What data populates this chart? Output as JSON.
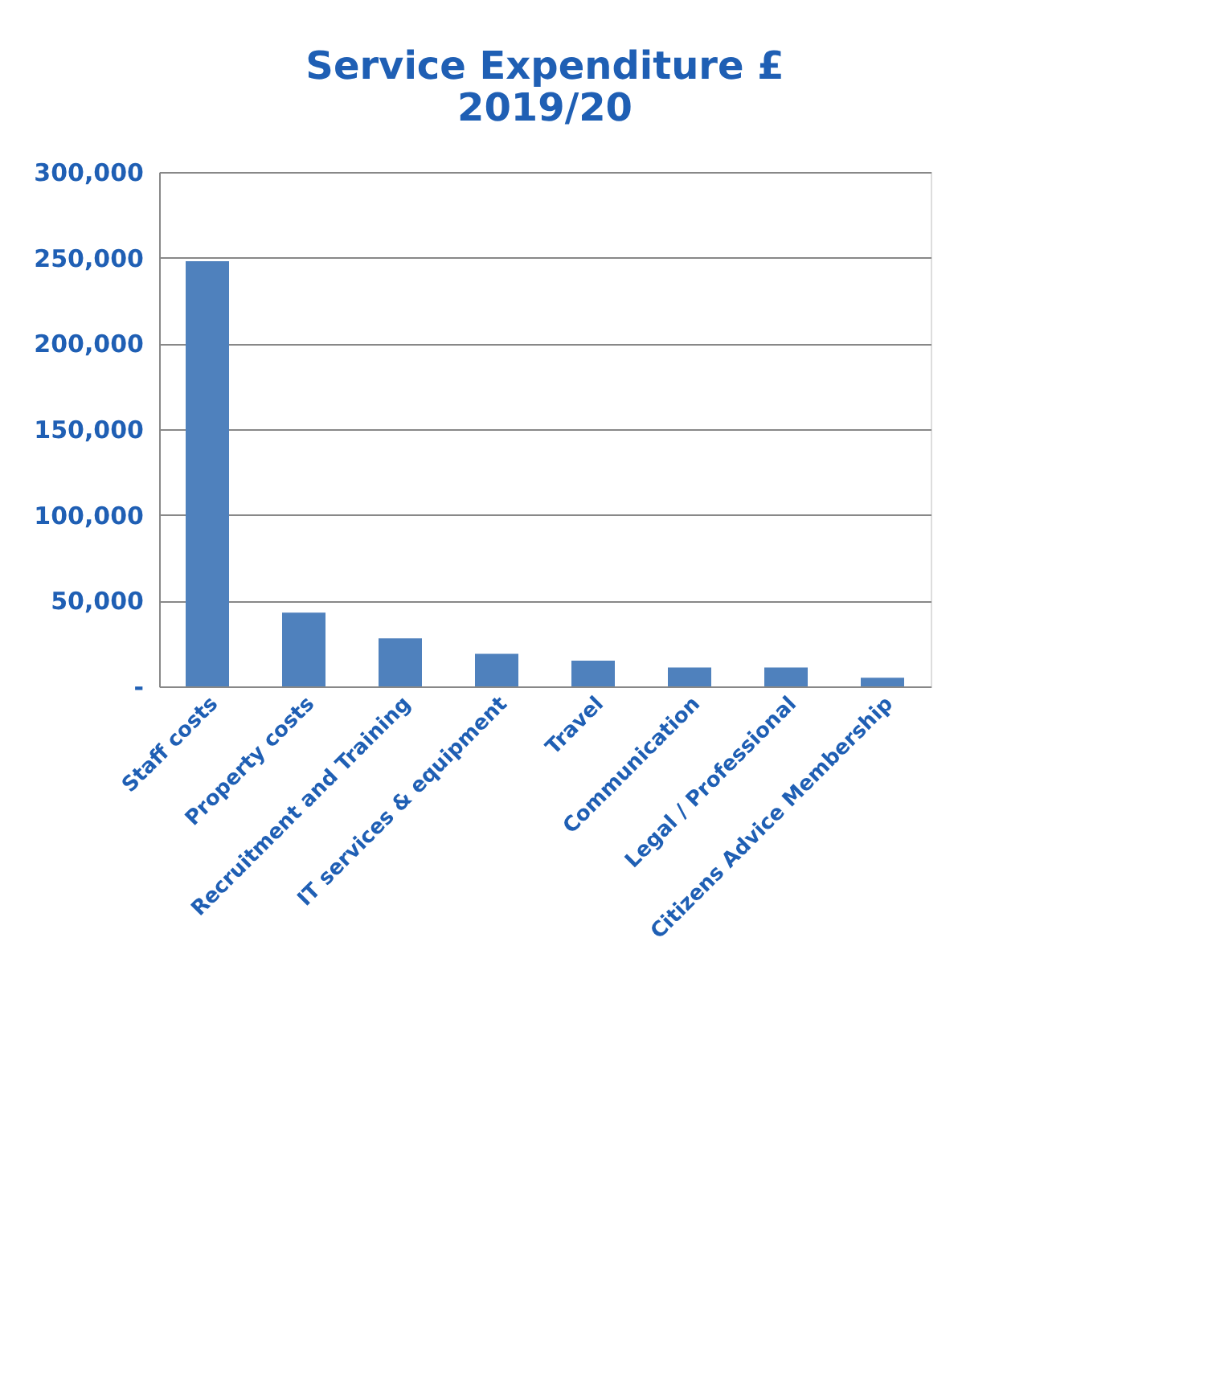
{
  "chart_data": {
    "type": "bar",
    "title": "Service Expenditure £ 2019/20",
    "categories": [
      "Staff costs",
      "Property costs",
      "Recruitment and Training",
      "IT services & equipment",
      "Travel",
      "Communication",
      "Legal / Professional",
      "Citizens Advice Membership"
    ],
    "values": [
      248000,
      43000,
      28000,
      19000,
      15000,
      11000,
      11000,
      5000
    ],
    "color": "#4f81bd",
    "ylim": [
      0,
      300000
    ],
    "yticks": [
      {
        "value": 0,
        "label": "-"
      },
      {
        "value": 50000,
        "label": "50,000"
      },
      {
        "value": 100000,
        "label": "100,000"
      },
      {
        "value": 150000,
        "label": "150,000"
      },
      {
        "value": 200000,
        "label": "200,000"
      },
      {
        "value": 250000,
        "label": "250,000"
      },
      {
        "value": 300000,
        "label": "300,000"
      }
    ],
    "grid": "y"
  }
}
